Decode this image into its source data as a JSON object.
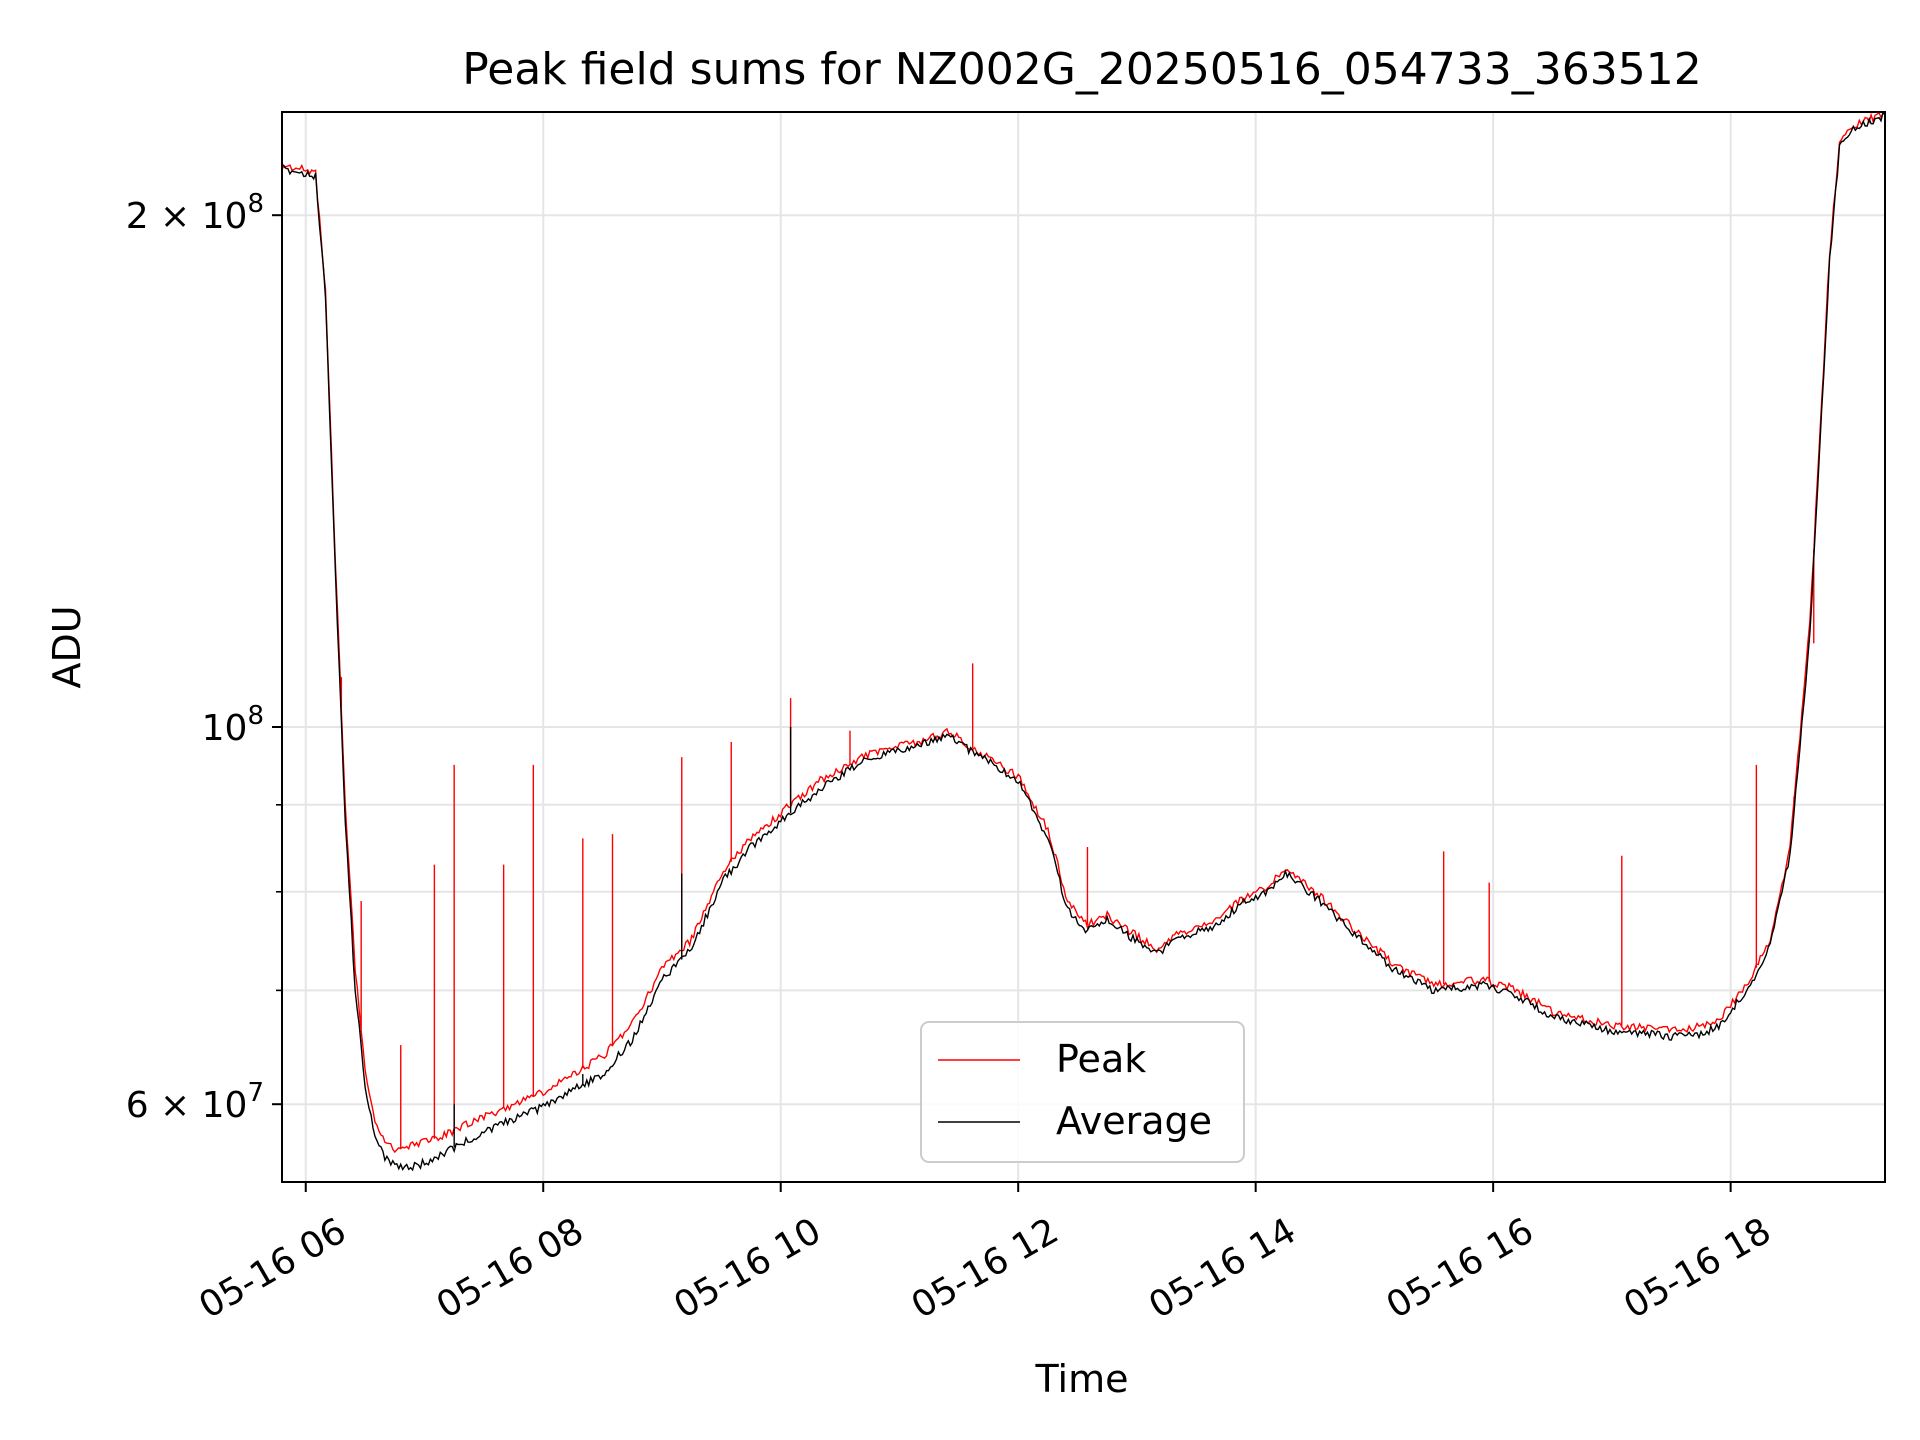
{
  "chart_data": {
    "type": "line",
    "title": "Peak field sums for NZ002G_20250516_054733_363512",
    "xlabel": "Time",
    "ylabel": "ADU",
    "x_scale": "time",
    "y_scale": "log",
    "xlim": [
      "2025-05-16 05:48",
      "2025-05-16 19:18"
    ],
    "ylim": [
      54000000,
      230000000
    ],
    "grid": true,
    "legend_position": "lower-center",
    "x_ticks": [
      {
        "value": "2025-05-16 06:00",
        "label": "05-16 06"
      },
      {
        "value": "2025-05-16 08:00",
        "label": "05-16 08"
      },
      {
        "value": "2025-05-16 10:00",
        "label": "05-16 10"
      },
      {
        "value": "2025-05-16 12:00",
        "label": "05-16 12"
      },
      {
        "value": "2025-05-16 14:00",
        "label": "05-16 14"
      },
      {
        "value": "2025-05-16 16:00",
        "label": "05-16 16"
      },
      {
        "value": "2025-05-16 18:00",
        "label": "05-16 18"
      }
    ],
    "y_ticks": [
      {
        "value": 60000000,
        "base": "6 × 10",
        "exp": "7"
      },
      {
        "value": 100000000,
        "base": "10",
        "exp": "8"
      },
      {
        "value": 200000000,
        "base": "2 × 10",
        "exp": "8"
      }
    ],
    "y_minor_ticks": [
      70000000,
      80000000,
      90000000
    ],
    "series": [
      {
        "name": "Peak",
        "color": "#ff0000",
        "x": [
          "2025-05-16 05:48",
          "2025-05-16 06:05",
          "2025-05-16 06:10",
          "2025-05-16 06:15",
          "2025-05-16 06:20",
          "2025-05-16 06:25",
          "2025-05-16 06:30",
          "2025-05-16 06:35",
          "2025-05-16 06:40",
          "2025-05-16 06:45",
          "2025-05-16 06:50",
          "2025-05-16 07:00",
          "2025-05-16 07:10",
          "2025-05-16 07:30",
          "2025-05-16 08:00",
          "2025-05-16 08:30",
          "2025-05-16 08:45",
          "2025-05-16 09:00",
          "2025-05-16 09:15",
          "2025-05-16 09:30",
          "2025-05-16 09:45",
          "2025-05-16 10:00",
          "2025-05-16 10:20",
          "2025-05-16 10:45",
          "2025-05-16 11:10",
          "2025-05-16 11:25",
          "2025-05-16 11:35",
          "2025-05-16 12:00",
          "2025-05-16 12:15",
          "2025-05-16 12:25",
          "2025-05-16 12:35",
          "2025-05-16 12:45",
          "2025-05-16 12:55",
          "2025-05-16 13:10",
          "2025-05-16 13:20",
          "2025-05-16 13:40",
          "2025-05-16 13:55",
          "2025-05-16 14:05",
          "2025-05-16 14:15",
          "2025-05-16 14:30",
          "2025-05-16 14:50",
          "2025-05-16 15:10",
          "2025-05-16 15:30",
          "2025-05-16 15:45",
          "2025-05-16 15:55",
          "2025-05-16 16:10",
          "2025-05-16 16:30",
          "2025-05-16 17:00",
          "2025-05-16 17:30",
          "2025-05-16 17:45",
          "2025-05-16 17:55",
          "2025-05-16 18:10",
          "2025-05-16 18:20",
          "2025-05-16 18:30",
          "2025-05-16 18:40",
          "2025-05-16 18:50",
          "2025-05-16 18:55",
          "2025-05-16 19:00",
          "2025-05-16 19:18"
        ],
        "values": [
          214000000,
          212000000,
          180000000,
          125000000,
          90000000,
          72000000,
          63000000,
          58500000,
          57000000,
          56500000,
          56500000,
          57000000,
          57500000,
          59000000,
          61000000,
          64000000,
          67000000,
          72000000,
          75000000,
          82000000,
          86000000,
          89000000,
          93000000,
          96500000,
          98000000,
          99500000,
          97500000,
          93500000,
          87000000,
          79000000,
          76500000,
          77500000,
          76000000,
          74000000,
          75500000,
          77000000,
          79500000,
          80500000,
          82500000,
          80000000,
          76000000,
          72500000,
          70500000,
          70800000,
          71000000,
          70200000,
          68000000,
          66800000,
          66400000,
          66600000,
          67500000,
          71000000,
          75000000,
          85000000,
          115000000,
          190000000,
          220000000,
          225000000,
          230000000
        ],
        "spikes": [
          {
            "x": "2025-05-16 07:15",
            "y": 95000000
          },
          {
            "x": "2025-05-16 07:55",
            "y": 95000000
          },
          {
            "x": "2025-05-16 07:05",
            "y": 83000000
          },
          {
            "x": "2025-05-16 07:40",
            "y": 83000000
          },
          {
            "x": "2025-05-16 08:20",
            "y": 86000000
          },
          {
            "x": "2025-05-16 08:35",
            "y": 86500000
          },
          {
            "x": "2025-05-16 09:10",
            "y": 96000000
          },
          {
            "x": "2025-05-16 09:35",
            "y": 98000000
          },
          {
            "x": "2025-05-16 10:05",
            "y": 104000000
          },
          {
            "x": "2025-05-16 10:35",
            "y": 99500000
          },
          {
            "x": "2025-05-16 11:37",
            "y": 109000000
          },
          {
            "x": "2025-05-16 12:35",
            "y": 85000000
          },
          {
            "x": "2025-05-16 15:35",
            "y": 84500000
          },
          {
            "x": "2025-05-16 15:58",
            "y": 81000000
          },
          {
            "x": "2025-05-16 17:05",
            "y": 84000000
          },
          {
            "x": "2025-05-16 18:13",
            "y": 95000000
          },
          {
            "x": "2025-05-16 18:32",
            "y": 91000000
          },
          {
            "x": "2025-05-16 18:42",
            "y": 112000000
          },
          {
            "x": "2025-05-16 06:18",
            "y": 107000000
          },
          {
            "x": "2025-05-16 06:28",
            "y": 79000000
          },
          {
            "x": "2025-05-16 06:48",
            "y": 65000000
          }
        ]
      },
      {
        "name": "Average",
        "color": "#000000",
        "x": [
          "2025-05-16 05:48",
          "2025-05-16 06:05",
          "2025-05-16 06:10",
          "2025-05-16 06:15",
          "2025-05-16 06:20",
          "2025-05-16 06:25",
          "2025-05-16 06:30",
          "2025-05-16 06:35",
          "2025-05-16 06:40",
          "2025-05-16 06:45",
          "2025-05-16 06:50",
          "2025-05-16 07:00",
          "2025-05-16 07:10",
          "2025-05-16 07:30",
          "2025-05-16 08:00",
          "2025-05-16 08:30",
          "2025-05-16 08:45",
          "2025-05-16 09:00",
          "2025-05-16 09:15",
          "2025-05-16 09:30",
          "2025-05-16 09:45",
          "2025-05-16 10:00",
          "2025-05-16 10:20",
          "2025-05-16 10:45",
          "2025-05-16 11:10",
          "2025-05-16 11:25",
          "2025-05-16 11:35",
          "2025-05-16 12:00",
          "2025-05-16 12:15",
          "2025-05-16 12:25",
          "2025-05-16 12:35",
          "2025-05-16 12:45",
          "2025-05-16 12:55",
          "2025-05-16 13:10",
          "2025-05-16 13:20",
          "2025-05-16 13:40",
          "2025-05-16 13:55",
          "2025-05-16 14:05",
          "2025-05-16 14:15",
          "2025-05-16 14:30",
          "2025-05-16 14:50",
          "2025-05-16 15:10",
          "2025-05-16 15:30",
          "2025-05-16 15:45",
          "2025-05-16 15:55",
          "2025-05-16 16:10",
          "2025-05-16 16:30",
          "2025-05-16 17:00",
          "2025-05-16 17:30",
          "2025-05-16 17:45",
          "2025-05-16 17:55",
          "2025-05-16 18:10",
          "2025-05-16 18:20",
          "2025-05-16 18:30",
          "2025-05-16 18:40",
          "2025-05-16 18:50",
          "2025-05-16 18:55",
          "2025-05-16 19:00",
          "2025-05-16 19:18"
        ],
        "values": [
          213000000,
          211000000,
          179000000,
          123000000,
          88000000,
          70000000,
          61500000,
          57500000,
          55800000,
          55200000,
          55000000,
          55400000,
          56200000,
          57800000,
          59800000,
          62500000,
          65500000,
          71000000,
          74000000,
          81000000,
          85000000,
          88000000,
          92000000,
          96000000,
          97500000,
          99000000,
          97000000,
          93000000,
          86000000,
          78000000,
          75800000,
          77000000,
          75500000,
          73500000,
          75000000,
          76500000,
          79000000,
          80000000,
          82000000,
          79500000,
          75500000,
          72000000,
          70000000,
          70300000,
          70500000,
          69700000,
          67500000,
          66300000,
          65800000,
          65900000,
          66800000,
          70500000,
          74500000,
          84000000,
          113000000,
          188000000,
          219000000,
          224000000,
          229000000
        ],
        "spikes": [
          {
            "x": "2025-05-16 10:05",
            "y": 100000000
          },
          {
            "x": "2025-05-16 09:10",
            "y": 82000000
          },
          {
            "x": "2025-05-16 07:15",
            "y": 60000000
          },
          {
            "x": "2025-05-16 08:20",
            "y": 62500000
          }
        ]
      }
    ]
  }
}
